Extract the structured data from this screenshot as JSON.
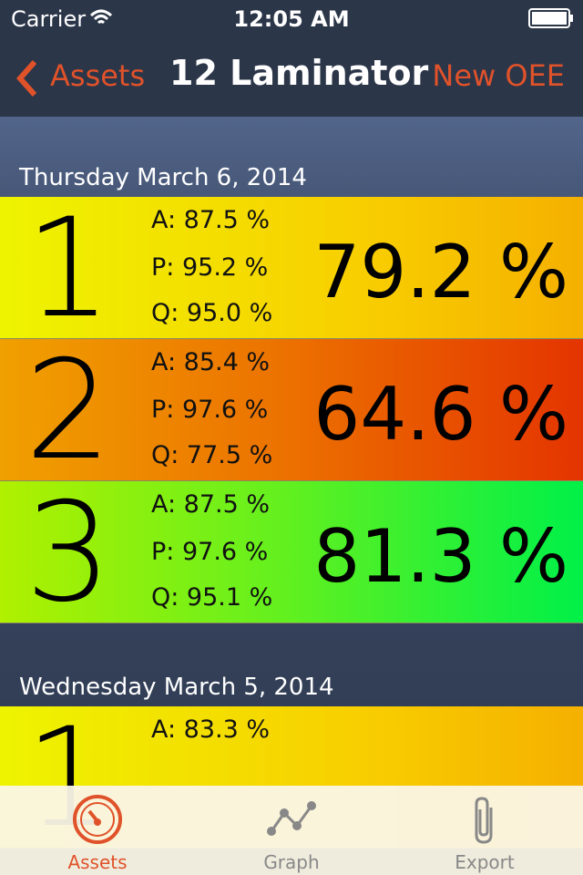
{
  "status_bar": {
    "carrier": "Carrier",
    "time": "12:05 AM"
  },
  "nav": {
    "back": "Assets",
    "title": "12 Laminator",
    "action": "New OEE"
  },
  "sections": [
    {
      "date": "Thursday March 6, 2014",
      "rows": [
        {
          "shift": "1",
          "a": "A: 87.5 %",
          "p": "P: 95.2 %",
          "q": "Q: 95.0 %",
          "oee": "79.2 %"
        },
        {
          "shift": "2",
          "a": "A: 85.4 %",
          "p": "P: 97.6 %",
          "q": "Q: 77.5 %",
          "oee": "64.6 %"
        },
        {
          "shift": "3",
          "a": "A: 87.5 %",
          "p": "P: 97.6 %",
          "q": "Q: 95.1 %",
          "oee": "81.3 %"
        }
      ]
    },
    {
      "date": "Wednesday March 5, 2014",
      "rows": [
        {
          "shift": "1",
          "a": "A: 83.3 %"
        }
      ]
    }
  ],
  "tab_bar": {
    "items": [
      "Assets",
      "Graph",
      "Export"
    ]
  }
}
